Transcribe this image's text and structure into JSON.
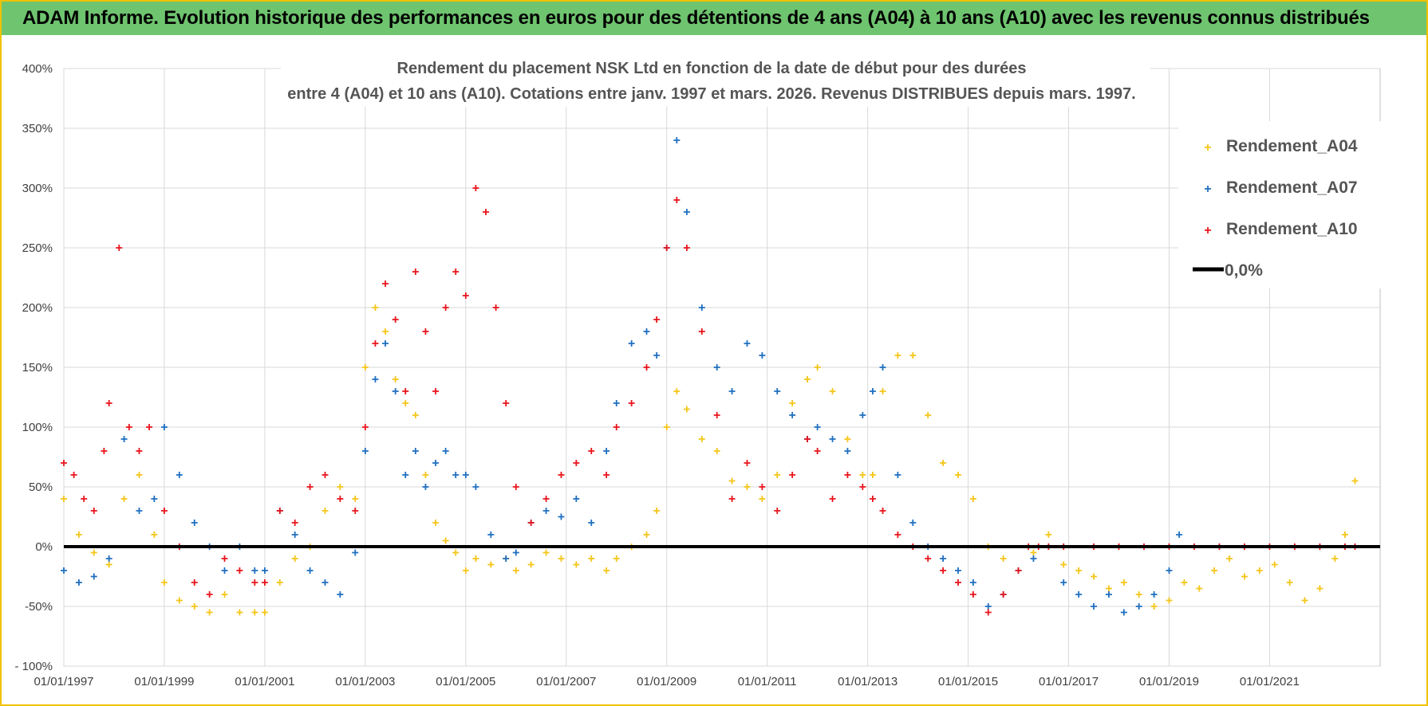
{
  "banner": {
    "text": "ADAM Informe. Evolution historique des performances en euros pour des détentions de 4 ans (A04) à 10 ans (A10) avec les revenus connus distribués"
  },
  "colors": {
    "banner_bg": "#6fc46f",
    "frame": "#f2c200",
    "A04": "#f5c518",
    "A07": "#1f6fc0",
    "A10": "#e8141b",
    "zero_line": "#000000",
    "grid": "#d9d9d9"
  },
  "chart_data": {
    "type": "scatter",
    "title_line1": "Rendement du placement NSK Ltd en fonction de la date de début pour des durées",
    "title_line2": "entre 4 (A04) et 10 ans (A10). Cotations entre janv. 1997 et mars. 2026. Revenus DISTRIBUES depuis mars. 1997.",
    "y_ticks": [
      "400%",
      "350%",
      "300%",
      "250%",
      "200%",
      "150%",
      "100%",
      "50%",
      "0%",
      "-50%",
      "- 100%"
    ],
    "y_tick_values": [
      400,
      350,
      300,
      250,
      200,
      150,
      100,
      50,
      0,
      -50,
      -100
    ],
    "ylim": [
      -100,
      400
    ],
    "x_ticks": [
      "01/01/1997",
      "01/01/1999",
      "01/01/2001",
      "01/01/2003",
      "01/01/2005",
      "01/01/2007",
      "01/01/2009",
      "01/01/2011",
      "01/01/2013",
      "01/01/2015",
      "01/01/2017",
      "01/01/2019",
      "01/01/2021"
    ],
    "x_tick_values": [
      1997,
      1999,
      2001,
      2003,
      2005,
      2007,
      2009,
      2011,
      2013,
      2015,
      2017,
      2019,
      2021
    ],
    "xlim": [
      1997,
      2023.2
    ],
    "legend": [
      "Rendement_A04",
      "Rendement_A07",
      "Rendement_A10",
      "0,0%"
    ],
    "legend_position": "top-right",
    "marker": "+",
    "series": [
      {
        "name": "Rendement_A04",
        "x": [
          1997.0,
          1997.3,
          1997.6,
          1997.9,
          1998.2,
          1998.5,
          1998.8,
          1999.0,
          1999.3,
          1999.6,
          1999.9,
          2000.2,
          2000.5,
          2000.8,
          2001.0,
          2001.3,
          2001.6,
          2001.9,
          2002.2,
          2002.5,
          2002.8,
          2003.0,
          2003.2,
          2003.4,
          2003.6,
          2003.8,
          2004.0,
          2004.2,
          2004.4,
          2004.6,
          2004.8,
          2005.0,
          2005.2,
          2005.5,
          2005.8,
          2006.0,
          2006.3,
          2006.6,
          2006.9,
          2007.2,
          2007.5,
          2007.8,
          2008.0,
          2008.3,
          2008.6,
          2008.8,
          2009.0,
          2009.2,
          2009.4,
          2009.7,
          2010.0,
          2010.3,
          2010.6,
          2010.9,
          2011.2,
          2011.5,
          2011.8,
          2012.0,
          2012.3,
          2012.6,
          2012.9,
          2013.1,
          2013.3,
          2013.6,
          2013.9,
          2014.2,
          2014.5,
          2014.8,
          2015.1,
          2015.4,
          2015.7,
          2016.0,
          2016.3,
          2016.6,
          2016.9,
          2017.2,
          2017.5,
          2017.8,
          2018.1,
          2018.4,
          2018.7,
          2019.0,
          2019.3,
          2019.6,
          2019.9,
          2020.2,
          2020.5,
          2020.8,
          2021.1,
          2021.4,
          2021.7,
          2022.0,
          2022.3,
          2022.5,
          2022.7
        ],
        "values": [
          40,
          10,
          -5,
          -15,
          40,
          60,
          10,
          -30,
          -45,
          -50,
          -55,
          -40,
          -55,
          -55,
          -55,
          -30,
          -10,
          0,
          30,
          50,
          40,
          150,
          200,
          180,
          140,
          120,
          110,
          60,
          20,
          5,
          -5,
          -20,
          -10,
          -15,
          -10,
          -20,
          -15,
          -5,
          -10,
          -15,
          -10,
          -20,
          -10,
          0,
          10,
          30,
          100,
          130,
          115,
          90,
          80,
          55,
          50,
          40,
          60,
          120,
          140,
          150,
          130,
          90,
          60,
          60,
          130,
          160,
          160,
          110,
          70,
          60,
          40,
          0,
          -10,
          -20,
          -5,
          10,
          -15,
          -20,
          -25,
          -35,
          -30,
          -40,
          -50,
          -45,
          -30,
          -35,
          -20,
          -10,
          -25,
          -20,
          -15,
          -30,
          -45,
          -35,
          -10,
          10,
          55
        ]
      },
      {
        "name": "Rendement_A07",
        "x": [
          1997.0,
          1997.3,
          1997.6,
          1997.9,
          1998.2,
          1998.5,
          1998.8,
          1999.0,
          1999.3,
          1999.6,
          1999.9,
          2000.2,
          2000.5,
          2000.8,
          2001.0,
          2001.3,
          2001.6,
          2001.9,
          2002.2,
          2002.5,
          2002.8,
          2003.0,
          2003.2,
          2003.4,
          2003.6,
          2003.8,
          2004.0,
          2004.2,
          2004.4,
          2004.6,
          2004.8,
          2005.0,
          2005.2,
          2005.5,
          2005.8,
          2006.0,
          2006.3,
          2006.6,
          2006.9,
          2007.2,
          2007.5,
          2007.8,
          2008.0,
          2008.3,
          2008.6,
          2008.8,
          2009.0,
          2009.2,
          2009.4,
          2009.7,
          2010.0,
          2010.3,
          2010.6,
          2010.9,
          2011.2,
          2011.5,
          2011.8,
          2012.0,
          2012.3,
          2012.6,
          2012.9,
          2013.1,
          2013.3,
          2013.6,
          2013.9,
          2014.2,
          2014.5,
          2014.8,
          2015.1,
          2015.4,
          2015.7,
          2016.0,
          2016.3,
          2016.6,
          2016.9,
          2017.2,
          2017.5,
          2017.8,
          2018.1,
          2018.4,
          2018.7,
          2019.0,
          2019.2
        ],
        "values": [
          -20,
          -30,
          -25,
          -10,
          90,
          30,
          40,
          100,
          60,
          20,
          0,
          -20,
          0,
          -20,
          -20,
          30,
          10,
          -20,
          -30,
          -40,
          -5,
          80,
          140,
          170,
          130,
          60,
          80,
          50,
          70,
          80,
          60,
          60,
          50,
          10,
          -10,
          -5,
          20,
          30,
          25,
          40,
          20,
          80,
          120,
          170,
          180,
          160,
          250,
          340,
          280,
          200,
          150,
          130,
          170,
          160,
          130,
          110,
          90,
          100,
          90,
          80,
          110,
          130,
          150,
          60,
          20,
          0,
          -10,
          -20,
          -30,
          -50,
          -40,
          -20,
          -10,
          0,
          -30,
          -40,
          -50,
          -40,
          -55,
          -50,
          -40,
          -20,
          10
        ]
      },
      {
        "name": "Rendement_A10",
        "x": [
          1997.0,
          1997.2,
          1997.4,
          1997.6,
          1997.8,
          1997.9,
          1998.1,
          1998.3,
          1998.5,
          1998.7,
          1999.0,
          1999.3,
          1999.6,
          1999.9,
          2000.2,
          2000.5,
          2000.8,
          2001.0,
          2001.3,
          2001.6,
          2001.9,
          2002.2,
          2002.5,
          2002.8,
          2003.0,
          2003.2,
          2003.4,
          2003.6,
          2003.8,
          2004.0,
          2004.2,
          2004.4,
          2004.6,
          2004.8,
          2005.0,
          2005.2,
          2005.4,
          2005.6,
          2005.8,
          2006.0,
          2006.3,
          2006.6,
          2006.9,
          2007.2,
          2007.5,
          2007.8,
          2008.0,
          2008.3,
          2008.6,
          2008.8,
          2009.0,
          2009.2,
          2009.4,
          2009.7,
          2010.0,
          2010.3,
          2010.6,
          2010.9,
          2011.2,
          2011.5,
          2011.8,
          2012.0,
          2012.3,
          2012.6,
          2012.9,
          2013.1,
          2013.3,
          2013.6,
          2013.9,
          2014.2,
          2014.5,
          2014.8,
          2015.1,
          2015.4,
          2015.7,
          2016.0,
          2016.2,
          2016.4,
          2016.6,
          2016.9,
          2017.5,
          2018.0,
          2018.5,
          2019.0,
          2019.5,
          2020.0,
          2020.5,
          2021.0,
          2021.5,
          2022.0,
          2022.5,
          2022.7
        ],
        "values": [
          70,
          60,
          40,
          30,
          80,
          120,
          250,
          100,
          80,
          100,
          30,
          0,
          -30,
          -40,
          -10,
          -20,
          -30,
          -30,
          30,
          20,
          50,
          60,
          40,
          30,
          100,
          170,
          220,
          190,
          130,
          230,
          180,
          130,
          200,
          230,
          210,
          300,
          280,
          200,
          120,
          50,
          20,
          40,
          60,
          70,
          80,
          60,
          100,
          120,
          150,
          190,
          250,
          290,
          250,
          180,
          110,
          40,
          70,
          50,
          30,
          60,
          90,
          80,
          40,
          60,
          50,
          40,
          30,
          10,
          0,
          -10,
          -20,
          -30,
          -40,
          -55,
          -40,
          -20,
          0,
          0,
          0,
          0,
          0,
          0,
          0,
          0,
          0,
          0,
          0,
          0,
          0,
          0,
          0,
          0
        ]
      }
    ]
  }
}
